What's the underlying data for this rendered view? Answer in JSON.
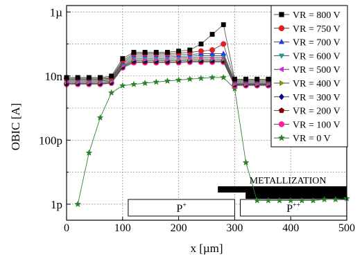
{
  "chart_data": {
    "type": "line",
    "xlabel": "x [µm]",
    "ylabel": "OBIC [A]",
    "xlim": [
      0,
      500
    ],
    "ylim_log10": [
      -12.5,
      -5.8
    ],
    "y_scale": "log",
    "xticks": [
      "0",
      "100",
      "200",
      "300",
      "400",
      "500"
    ],
    "yticks": [
      {
        "label": "1µ",
        "exp": -6
      },
      {
        "label": "10n",
        "exp": -8
      },
      {
        "label": "100p",
        "exp": -10
      },
      {
        "label": "1p",
        "exp": -12
      }
    ],
    "grid": "dotted",
    "legend_position": "top-right",
    "x": [
      0,
      20,
      40,
      60,
      80,
      100,
      120,
      140,
      160,
      180,
      200,
      220,
      240,
      260,
      280,
      300,
      320,
      340,
      360,
      380,
      400,
      420,
      440,
      460,
      480
    ],
    "series": [
      {
        "name": "VR = 800 V",
        "color": "#000000",
        "marker": "square",
        "values": [
          9e-09,
          9e-09,
          9e-09,
          9e-09,
          1e-08,
          3.5e-08,
          5.5e-08,
          5.5e-08,
          5.5e-08,
          5.5e-08,
          6e-08,
          6.5e-08,
          1e-07,
          2e-07,
          4e-07,
          8e-09,
          8e-09,
          8e-09,
          8e-09,
          8e-09,
          8e-09,
          8e-09,
          8e-09,
          8e-09,
          8e-09
        ]
      },
      {
        "name": "VR = 750 V",
        "color": "#e02020",
        "marker": "circle",
        "values": [
          8.5e-09,
          8.5e-09,
          8.5e-09,
          8.5e-09,
          9e-09,
          3e-08,
          5e-08,
          5e-08,
          5e-08,
          5e-08,
          5.2e-08,
          5.5e-08,
          6e-08,
          6.5e-08,
          1e-07,
          7.5e-09,
          7.5e-09,
          7.5e-09,
          7.5e-09,
          7.5e-09,
          7.5e-09,
          7.5e-09,
          7.5e-09,
          7.5e-09,
          7.5e-09
        ]
      },
      {
        "name": "VR = 700 V",
        "color": "#1f3fe0",
        "marker": "triangle-up",
        "values": [
          8e-09,
          8e-09,
          8e-09,
          8e-09,
          8.5e-09,
          2.7e-08,
          4.5e-08,
          4.5e-08,
          4.5e-08,
          4.5e-08,
          4.6e-08,
          4.7e-08,
          5e-08,
          5e-08,
          5e-08,
          7e-09,
          7e-09,
          7e-09,
          7e-09,
          7e-09,
          7e-09,
          7e-09,
          7e-09,
          7e-09,
          7e-09
        ]
      },
      {
        "name": "VR = 600 V",
        "color": "#1a9a9a",
        "marker": "triangle-down",
        "values": [
          7.5e-09,
          7.5e-09,
          7.5e-09,
          7.5e-09,
          8e-09,
          2.5e-08,
          4e-08,
          4e-08,
          4e-08,
          4e-08,
          4.1e-08,
          4.2e-08,
          4.3e-08,
          4.3e-08,
          4.3e-08,
          6.5e-09,
          6.5e-09,
          6.5e-09,
          6.5e-09,
          6.5e-09,
          6.5e-09,
          6.5e-09,
          6.5e-09,
          6.5e-09,
          6.5e-09
        ]
      },
      {
        "name": "VR = 500 V",
        "color": "#e020e0",
        "marker": "triangle-left",
        "values": [
          7e-09,
          7e-09,
          7e-09,
          7e-09,
          7.5e-09,
          2.3e-08,
          3.6e-08,
          3.6e-08,
          3.6e-08,
          3.6e-08,
          3.7e-08,
          3.7e-08,
          3.8e-08,
          3.8e-08,
          3.8e-08,
          6e-09,
          6e-09,
          6e-09,
          6e-09,
          6e-09,
          6e-09,
          6e-09,
          6e-09,
          6e-09,
          6e-09
        ]
      },
      {
        "name": "VR = 400 V",
        "color": "#8c8c10",
        "marker": "triangle-right",
        "values": [
          6.5e-09,
          6.5e-09,
          6.5e-09,
          6.5e-09,
          7e-09,
          2.1e-08,
          3.3e-08,
          3.3e-08,
          3.3e-08,
          3.3e-08,
          3.3e-08,
          3.4e-08,
          3.4e-08,
          3.4e-08,
          3.4e-08,
          5.7e-09,
          5.7e-09,
          5.7e-09,
          5.7e-09,
          5.7e-09,
          5.7e-09,
          5.7e-09,
          5.7e-09,
          5.7e-09,
          5.7e-09
        ]
      },
      {
        "name": "VR = 300 V",
        "color": "#0a0a80",
        "marker": "diamond",
        "values": [
          6e-09,
          6e-09,
          6e-09,
          6e-09,
          6.5e-09,
          2e-08,
          3e-08,
          3e-08,
          3e-08,
          3e-08,
          3e-08,
          3.1e-08,
          3.1e-08,
          3.1e-08,
          3.1e-08,
          5.5e-09,
          5.5e-09,
          5.5e-09,
          5.5e-09,
          5.5e-09,
          5.5e-09,
          5.5e-09,
          5.5e-09,
          5.5e-09,
          5.5e-09
        ]
      },
      {
        "name": "VR = 200 V",
        "color": "#800000",
        "marker": "pentagon",
        "values": [
          5.8e-09,
          5.8e-09,
          5.8e-09,
          5.8e-09,
          6.2e-09,
          1.9e-08,
          2.8e-08,
          2.8e-08,
          2.8e-08,
          2.8e-08,
          2.8e-08,
          2.9e-08,
          2.9e-08,
          2.9e-08,
          2.9e-08,
          5.3e-09,
          5.3e-09,
          5.3e-09,
          5.3e-09,
          5.3e-09,
          5.3e-09,
          5.3e-09,
          5.3e-09,
          5.3e-09,
          5.3e-09
        ]
      },
      {
        "name": "VR = 100 V",
        "color": "#ff1f9a",
        "marker": "circle",
        "values": [
          5.5e-09,
          5.5e-09,
          5.5e-09,
          5.5e-09,
          6e-09,
          1.8e-08,
          2.6e-08,
          2.6e-08,
          2.6e-08,
          2.6e-08,
          2.6e-08,
          2.7e-08,
          2.7e-08,
          2.7e-08,
          2.7e-08,
          5e-09,
          5e-09,
          5e-09,
          5e-09,
          5e-09,
          5e-09,
          5e-09,
          5e-09,
          5e-09,
          5e-09
        ]
      },
      {
        "name": "VR = 0 V",
        "color": "#2f7f2f",
        "marker": "star",
        "x": [
          20,
          40,
          60,
          80,
          100,
          120,
          140,
          160,
          180,
          200,
          220,
          240,
          260,
          280,
          300,
          320,
          340,
          360,
          380,
          400,
          420,
          440,
          460,
          480,
          500
        ],
        "values": [
          1e-12,
          4e-11,
          5e-10,
          3e-09,
          5e-09,
          5.5e-09,
          6e-09,
          6.5e-09,
          7e-09,
          7.5e-09,
          8e-09,
          8.5e-09,
          9e-09,
          9e-09,
          4e-09,
          2e-11,
          1.3e-12,
          1.3e-12,
          1.3e-12,
          1.3e-12,
          1.3e-12,
          1.3e-12,
          1.4e-12,
          1.4e-12,
          1.5e-12
        ]
      }
    ],
    "annotations": {
      "metallization_label": "METALLIZATION",
      "metallization_x": [
        270,
        500
      ],
      "region_p_label": "P",
      "region_p_sup": "+",
      "region_p_x": [
        110,
        300
      ],
      "region_pp_label": "P",
      "region_pp_sup": "++",
      "region_pp_x": [
        310,
        500
      ]
    }
  }
}
